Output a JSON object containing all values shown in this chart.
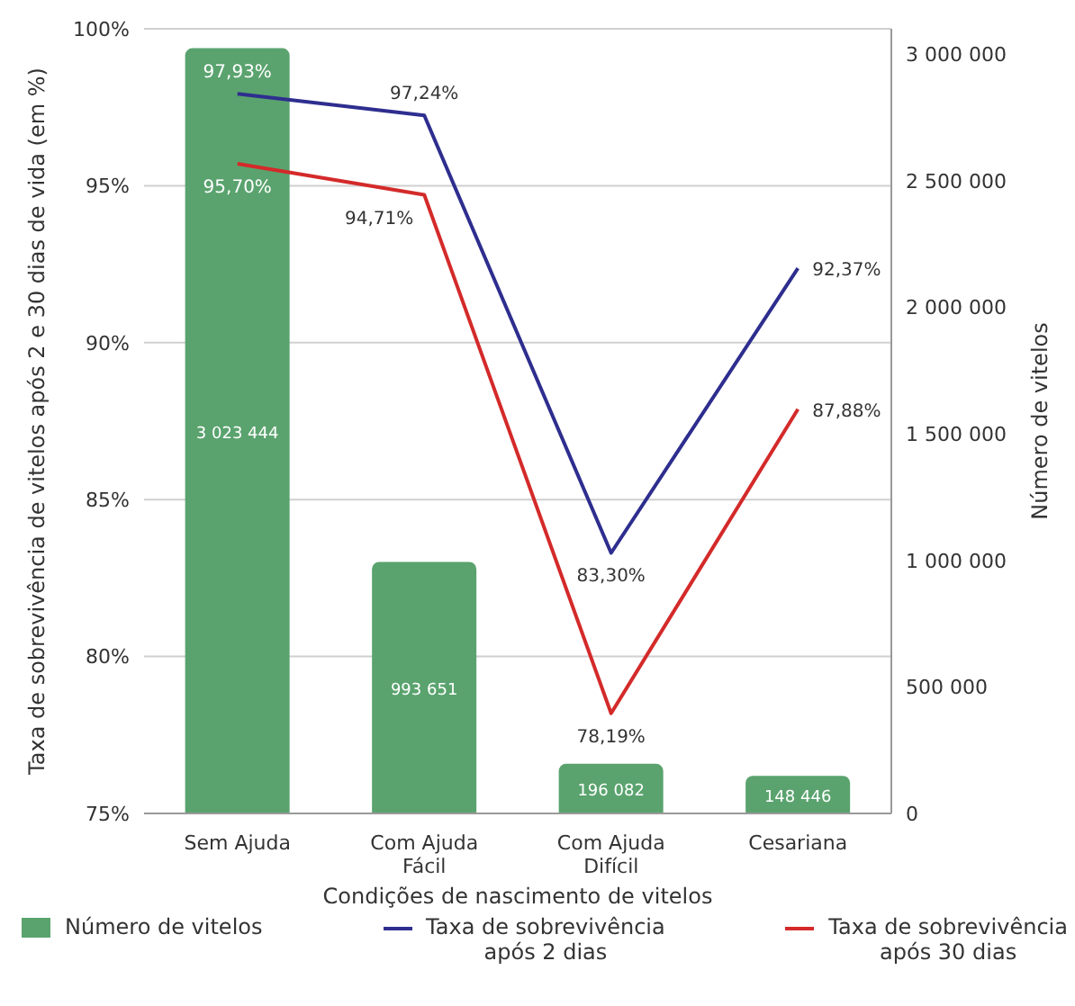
{
  "chart_data": {
    "type": "line",
    "xlabel": "Condições de nascimento de vitelos",
    "ylabel": "Taxa de sobrevivência de vitelos após 2 e 30 dias de vida (em %)",
    "y2label": "Número de vitelos",
    "categories": [
      "Sem Ajuda",
      "Com Ajuda\nFácil",
      "Com Ajuda\nDifícil",
      "Cesariana"
    ],
    "series": [
      {
        "name": "Número de vitelos",
        "type": "bar",
        "axis": "y2",
        "color": "#5aa36e",
        "values": [
          3023444,
          993651,
          196082,
          148446
        ],
        "value_labels": [
          "3 023 444",
          "993 651",
          "196 082",
          "148 446"
        ]
      },
      {
        "name": "Taxa de sobrevivência\napós 2 dias",
        "color": "#2e2e8f",
        "values": [
          97.93,
          97.24,
          83.3,
          92.37
        ],
        "value_labels": [
          "97,93%",
          "97,24%",
          "83,30%",
          "92,37%"
        ]
      },
      {
        "name": "Taxa de sobrevivência\napós 30 dias",
        "color": "#d42a2a",
        "values": [
          95.7,
          94.71,
          78.19,
          87.88
        ],
        "value_labels": [
          "95,70%",
          "94,71%",
          "78,19%",
          "87,88%"
        ]
      }
    ],
    "ylim": [
      75,
      100
    ],
    "yticks": [
      {
        "value": 75,
        "label": "75%"
      },
      {
        "value": 80,
        "label": "80%"
      },
      {
        "value": 85,
        "label": "85%"
      },
      {
        "value": 90,
        "label": "90%"
      },
      {
        "value": 95,
        "label": "95%"
      },
      {
        "value": 100,
        "label": "100%"
      }
    ],
    "y2lim": [
      0,
      3100000
    ],
    "y2ticks": [
      {
        "value": 0,
        "label": "0"
      },
      {
        "value": 500000,
        "label": "500 000"
      },
      {
        "value": 1000000,
        "label": "1 000 000"
      },
      {
        "value": 1500000,
        "label": "1 500 000"
      },
      {
        "value": 2000000,
        "label": "2 000 000"
      },
      {
        "value": 2500000,
        "label": "2 500 000"
      },
      {
        "value": 3000000,
        "label": "3 000 000"
      }
    ],
    "grid": "y",
    "legend": "bottom",
    "marker": "none"
  }
}
